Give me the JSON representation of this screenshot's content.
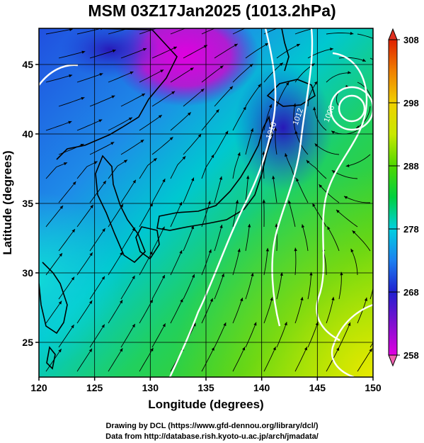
{
  "title": "MSM 03Z17Jan2025 (1013.2hPa)",
  "chart_data": {
    "type": "heatmap",
    "description_of_field": "potential temperature shading with wind streamlines and pressure contours",
    "xlabel": "Longitude (degrees)",
    "ylabel": "Latitude  (degrees)",
    "xlim": [
      120,
      150
    ],
    "ylim": [
      22.5,
      47.6
    ],
    "x_ticks": [
      120,
      125,
      130,
      135,
      140,
      145,
      150
    ],
    "y_ticks": [
      25,
      30,
      35,
      40,
      45
    ],
    "grid": true,
    "colorbar": {
      "range": [
        258,
        308
      ],
      "ticks": [
        258,
        268,
        278,
        288,
        298,
        308
      ],
      "colors": [
        "#d800d8",
        "#3a10c8",
        "#1c70e8",
        "#00c8d8",
        "#00d000",
        "#b8e800",
        "#f0c000",
        "#e03000"
      ]
    },
    "contour_labels": [
      {
        "text": "1016",
        "lon": 140.8,
        "lat": 39.6
      },
      {
        "text": "1012",
        "lon": 143.2,
        "lat": 40.6
      },
      {
        "text": "1008",
        "lon": 146.0,
        "lat": 40.8
      }
    ],
    "low_center": {
      "lon": 147.8,
      "lat": 42.6
    }
  },
  "credits": {
    "line1": "Drawing by DCL (https://www.gfd-dennou.org/library/dcl/)",
    "line2": "Data from http://database.rish.kyoto-u.ac.jp/arch/jmadata/"
  }
}
